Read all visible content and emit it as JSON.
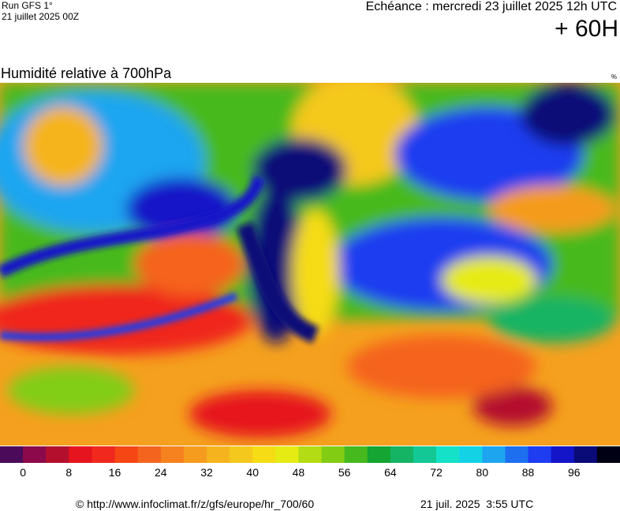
{
  "header": {
    "run": "Run GFS 1°",
    "run_date": "21 juillet 2025 00Z",
    "valid": "Echéance : mercredi 23 juillet 2025 12h UTC",
    "lead": "+ 60H"
  },
  "map": {
    "title": "Humidité relative à 700hPa",
    "unit": "%"
  },
  "scale": {
    "colors": [
      "#4b0a5a",
      "#8c0a4b",
      "#b4102d",
      "#e6141e",
      "#f0281e",
      "#f54614",
      "#f5641e",
      "#f5821e",
      "#f59b1e",
      "#f5b41e",
      "#f5c81e",
      "#f5dc14",
      "#e6eb14",
      "#b4dc14",
      "#82cd14",
      "#46b91e",
      "#14a532",
      "#14b464",
      "#14c896",
      "#14e1c8",
      "#14d2e6",
      "#1ea5f0",
      "#1e6ef0",
      "#1e3cf0",
      "#1414c8",
      "#0a0a78",
      "#000014"
    ],
    "ticks": [
      0,
      8,
      16,
      24,
      32,
      40,
      48,
      56,
      64,
      72,
      80,
      88,
      96
    ]
  },
  "footer": {
    "credit": "© http://www.infoclimat.fr/z/gfs/europe/hr_700/60",
    "timestamp": "21 juil. 2025  3:55 UTC"
  }
}
